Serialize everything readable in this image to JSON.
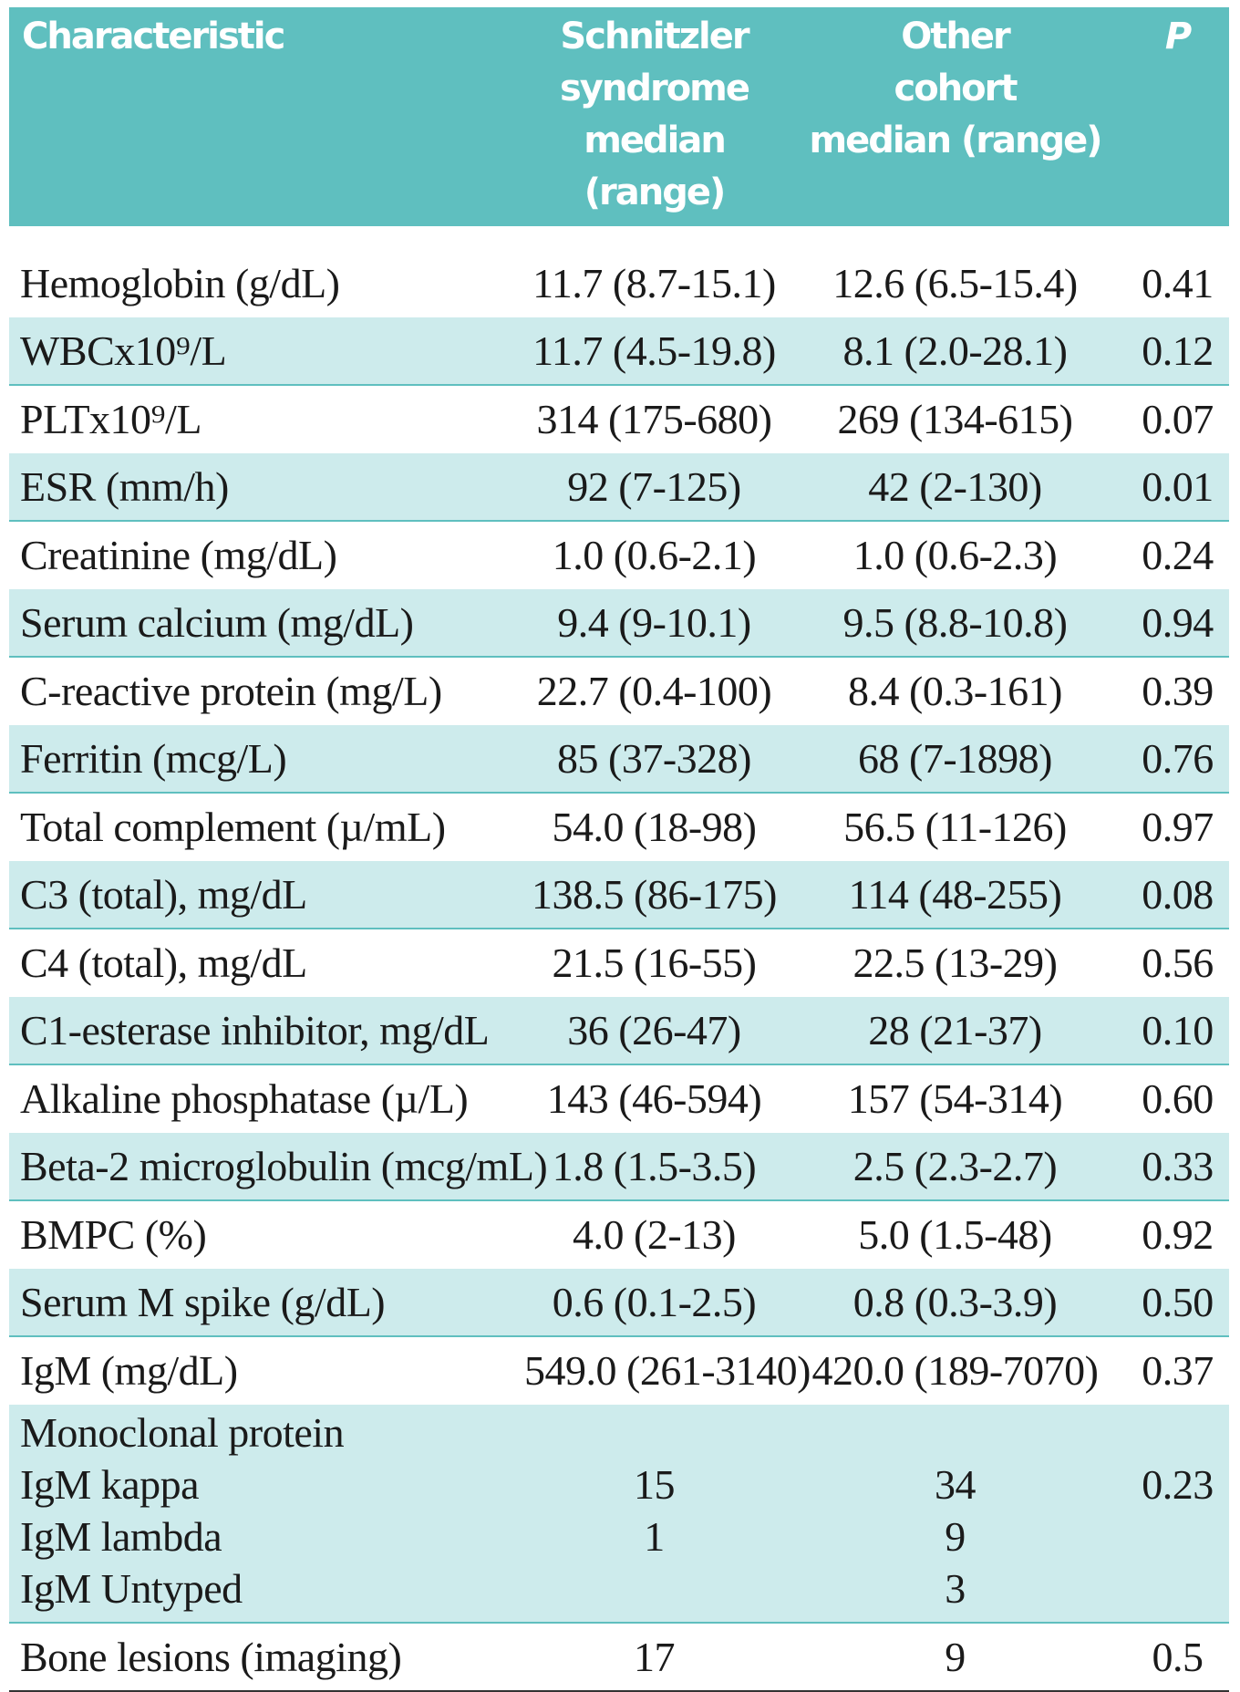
{
  "header": {
    "characteristic": "Characteristic",
    "schnitzler_lines": [
      "Schnitzler",
      "syndrome",
      "median (range)"
    ],
    "other_lines": [
      "Other",
      "cohort",
      "median (range)"
    ],
    "p": "P"
  },
  "rows": [
    {
      "label": "Hemoglobin (g/dL)",
      "schnitzler": "11.7 (8.7-15.1)",
      "other": "12.6 (6.5-15.4)",
      "p": "0.41"
    },
    {
      "label": "WBCx10⁹/L",
      "schnitzler": "11.7 (4.5-19.8)",
      "other": "8.1 (2.0-28.1)",
      "p": "0.12"
    },
    {
      "label": "PLTx10⁹/L",
      "schnitzler": "314 (175-680)",
      "other": "269 (134-615)",
      "p": "0.07"
    },
    {
      "label": "ESR (mm/h)",
      "schnitzler": "92 (7-125)",
      "other": "42 (2-130)",
      "p": "0.01"
    },
    {
      "label": "Creatinine (mg/dL)",
      "schnitzler": "1.0 (0.6-2.1)",
      "other": "1.0 (0.6-2.3)",
      "p": "0.24"
    },
    {
      "label": "Serum calcium (mg/dL)",
      "schnitzler": "9.4 (9-10.1)",
      "other": "9.5 (8.8-10.8)",
      "p": "0.94"
    },
    {
      "label": "C-reactive protein (mg/L)",
      "schnitzler": "22.7 (0.4-100)",
      "other": "8.4 (0.3-161)",
      "p": "0.39"
    },
    {
      "label": "Ferritin (mcg/L)",
      "schnitzler": "85 (37-328)",
      "other": "68 (7-1898)",
      "p": "0.76"
    },
    {
      "label": "Total complement (µ/mL)",
      "schnitzler": "54.0 (18-98)",
      "other": "56.5 (11-126)",
      "p": "0.97"
    },
    {
      "label": "C3 (total), mg/dL",
      "schnitzler": "138.5 (86-175)",
      "other": "114 (48-255)",
      "p": "0.08"
    },
    {
      "label": "C4 (total), mg/dL",
      "schnitzler": "21.5 (16-55)",
      "other": "22.5 (13-29)",
      "p": "0.56"
    },
    {
      "label": "C1-esterase inhibitor, mg/dL",
      "schnitzler": "36 (26-47)",
      "other": "28 (21-37)",
      "p": "0.10"
    },
    {
      "label": "Alkaline phosphatase (µ/L)",
      "schnitzler": "143 (46-594)",
      "other": "157 (54-314)",
      "p": "0.60"
    },
    {
      "label": "Beta-2 microglobulin (mcg/mL)",
      "schnitzler": "1.8 (1.5-3.5)",
      "other": "2.5 (2.3-2.7)",
      "p": "0.33"
    },
    {
      "label": "BMPC (%)",
      "schnitzler": "4.0 (2-13)",
      "other": "5.0 (1.5-48)",
      "p": "0.92"
    },
    {
      "label": "Serum M spike (g/dL)",
      "schnitzler": "0.6 (0.1-2.5)",
      "other": "0.8 (0.3-3.9)",
      "p": "0.50"
    },
    {
      "label": "IgM (mg/dL)",
      "schnitzler": "549.0 (261-3140)",
      "other": "420.0 (189-7070)",
      "p": "0.37"
    }
  ],
  "monoclonal": {
    "title": "Monoclonal protein",
    "p": "0.23",
    "items": [
      {
        "label": "IgM kappa",
        "schnitzler": "15",
        "other": "34"
      },
      {
        "label": "IgM lambda",
        "schnitzler": "1",
        "other": "9"
      },
      {
        "label": "IgM Untyped",
        "schnitzler": "",
        "other": "3"
      }
    ]
  },
  "bone": {
    "label": "Bone lesions (imaging)",
    "schnitzler": "17",
    "other": "9",
    "p": "0.5"
  }
}
